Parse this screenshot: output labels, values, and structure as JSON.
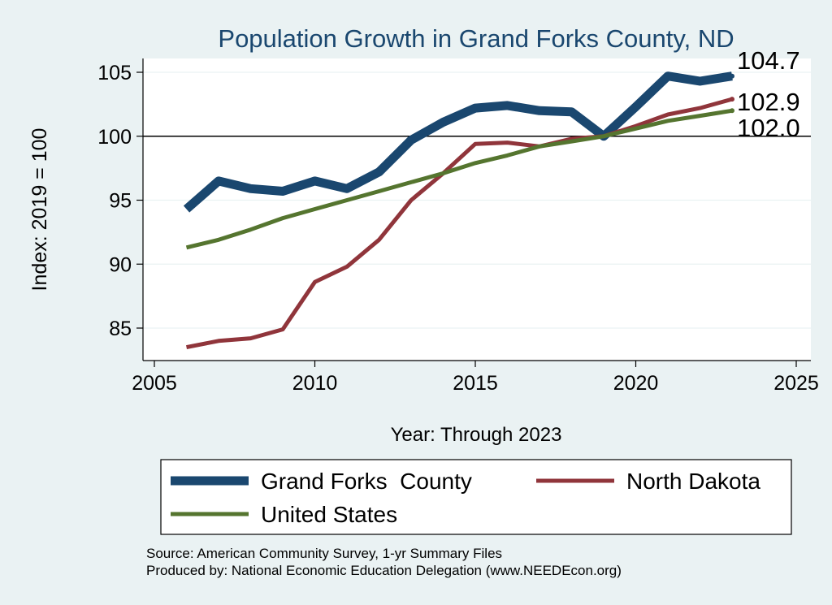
{
  "chart_data": {
    "type": "line",
    "title": "Population Growth in Grand Forks County, ND",
    "xlabel": "Year: Through 2023",
    "ylabel": "Index: 2019 = 100",
    "xlim": [
      2005,
      2025
    ],
    "ylim": [
      82.5,
      106
    ],
    "xticks": [
      2005,
      2010,
      2015,
      2020,
      2025
    ],
    "yticks": [
      85,
      90,
      95,
      100,
      105
    ],
    "reference_line_y": 100,
    "grid": true,
    "legend_position": "bottom",
    "x": [
      2006,
      2007,
      2008,
      2009,
      2010,
      2011,
      2012,
      2013,
      2014,
      2015,
      2016,
      2017,
      2018,
      2019,
      2020,
      2021,
      2022,
      2023
    ],
    "series": [
      {
        "name": "Grand Forks  County",
        "color": "#1a476f",
        "values": [
          94.3,
          96.5,
          95.9,
          95.7,
          96.5,
          95.9,
          97.2,
          99.7,
          101.1,
          102.2,
          102.4,
          102.0,
          101.9,
          100.0,
          102.3,
          104.7,
          104.3,
          104.7
        ],
        "end_label": "104.7"
      },
      {
        "name": "North Dakota",
        "color": "#90353b",
        "values": [
          83.5,
          84.0,
          84.2,
          84.9,
          88.6,
          89.8,
          91.9,
          95.0,
          97.1,
          99.4,
          99.5,
          99.2,
          99.8,
          100.0,
          100.8,
          101.7,
          102.2,
          102.9
        ],
        "end_label": "102.9"
      },
      {
        "name": "United States",
        "color": "#55752f",
        "values": [
          91.3,
          91.9,
          92.7,
          93.6,
          94.3,
          95.0,
          95.7,
          96.4,
          97.1,
          97.9,
          98.5,
          99.2,
          99.6,
          100.0,
          100.6,
          101.2,
          101.6,
          102.0
        ],
        "end_label": "102.0"
      }
    ]
  },
  "source": {
    "line1": "Source: American Community Survey, 1-yr Summary Files",
    "line2": "Produced by: National Economic Education Delegation (www.NEEDEcon.org)"
  }
}
